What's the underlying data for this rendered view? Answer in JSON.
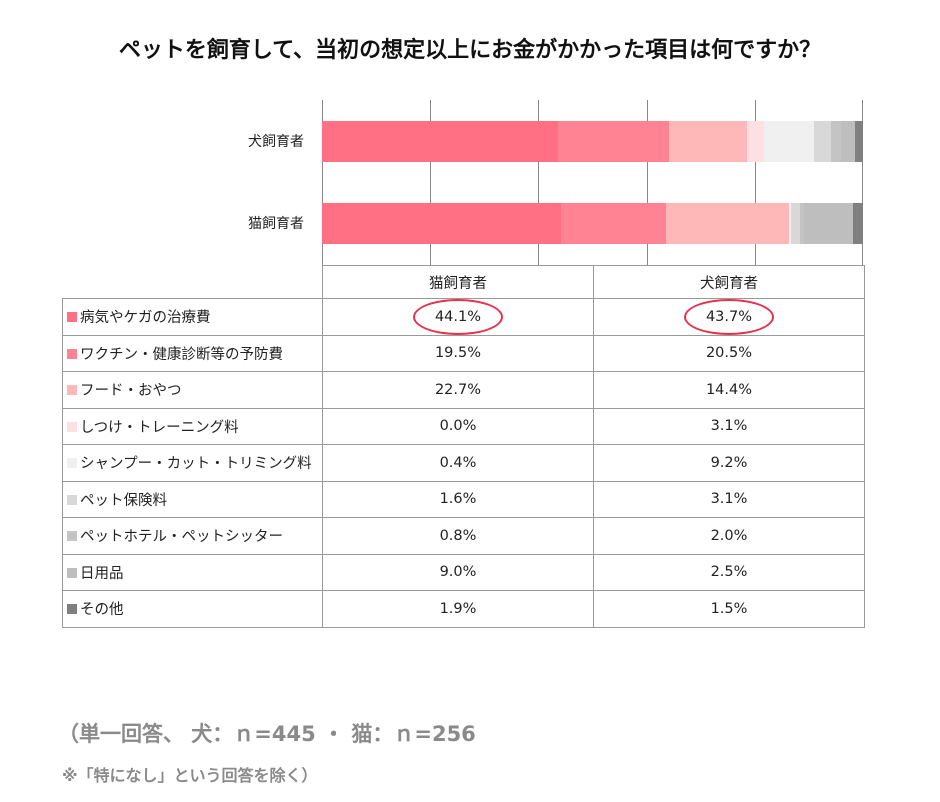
{
  "chart_data": {
    "type": "stacked-bar-horizontal-100",
    "title": "ペットを飼育して、当初の想定以上にお金がかかった項目は何ですか？",
    "xlim": [
      0,
      100
    ],
    "grid": true,
    "bars": [
      "犬飼育者",
      "猫飼育者"
    ],
    "table_columns": [
      "猫飼育者",
      "犬飼育者"
    ],
    "series": [
      {
        "name": "病気やケガの治療費",
        "color": "#ff7085",
        "猫飼育者": 44.1,
        "犬飼育者": 43.7,
        "highlight": true
      },
      {
        "name": "ワクチン・健康診断等の予防費",
        "color": "#ff8393",
        "猫飼育者": 19.5,
        "犬飼育者": 20.5
      },
      {
        "name": "フード・おやつ",
        "color": "#ffb8b8",
        "猫飼育者": 22.7,
        "犬飼育者": 14.4
      },
      {
        "name": "しつけ・トレーニング料",
        "color": "#ffe0e2",
        "猫飼育者": 0.0,
        "犬飼育者": 3.1
      },
      {
        "name": "シャンプー・カット・トリミング料",
        "color": "#f0f0f0",
        "猫飼育者": 0.4,
        "犬飼育者": 9.2
      },
      {
        "name": "ペット保険料",
        "color": "#d8d8d8",
        "猫飼育者": 1.6,
        "犬飼育者": 3.1
      },
      {
        "name": "ペットホテル・ペットシッター",
        "color": "#c4c4c4",
        "猫飼育者": 0.8,
        "犬飼育者": 2.0
      },
      {
        "name": "日用品",
        "color": "#bebebe",
        "猫飼育者": 9.0,
        "犬飼育者": 2.5
      },
      {
        "name": "その他",
        "color": "#808080",
        "猫飼育者": 1.9,
        "犬飼育者": 1.5
      }
    ]
  },
  "footer": {
    "line1": "（単一回答、 犬：ｎ=445 ・ 猫：ｎ=256",
    "line2": "※「特になし」という回答を除く）"
  }
}
